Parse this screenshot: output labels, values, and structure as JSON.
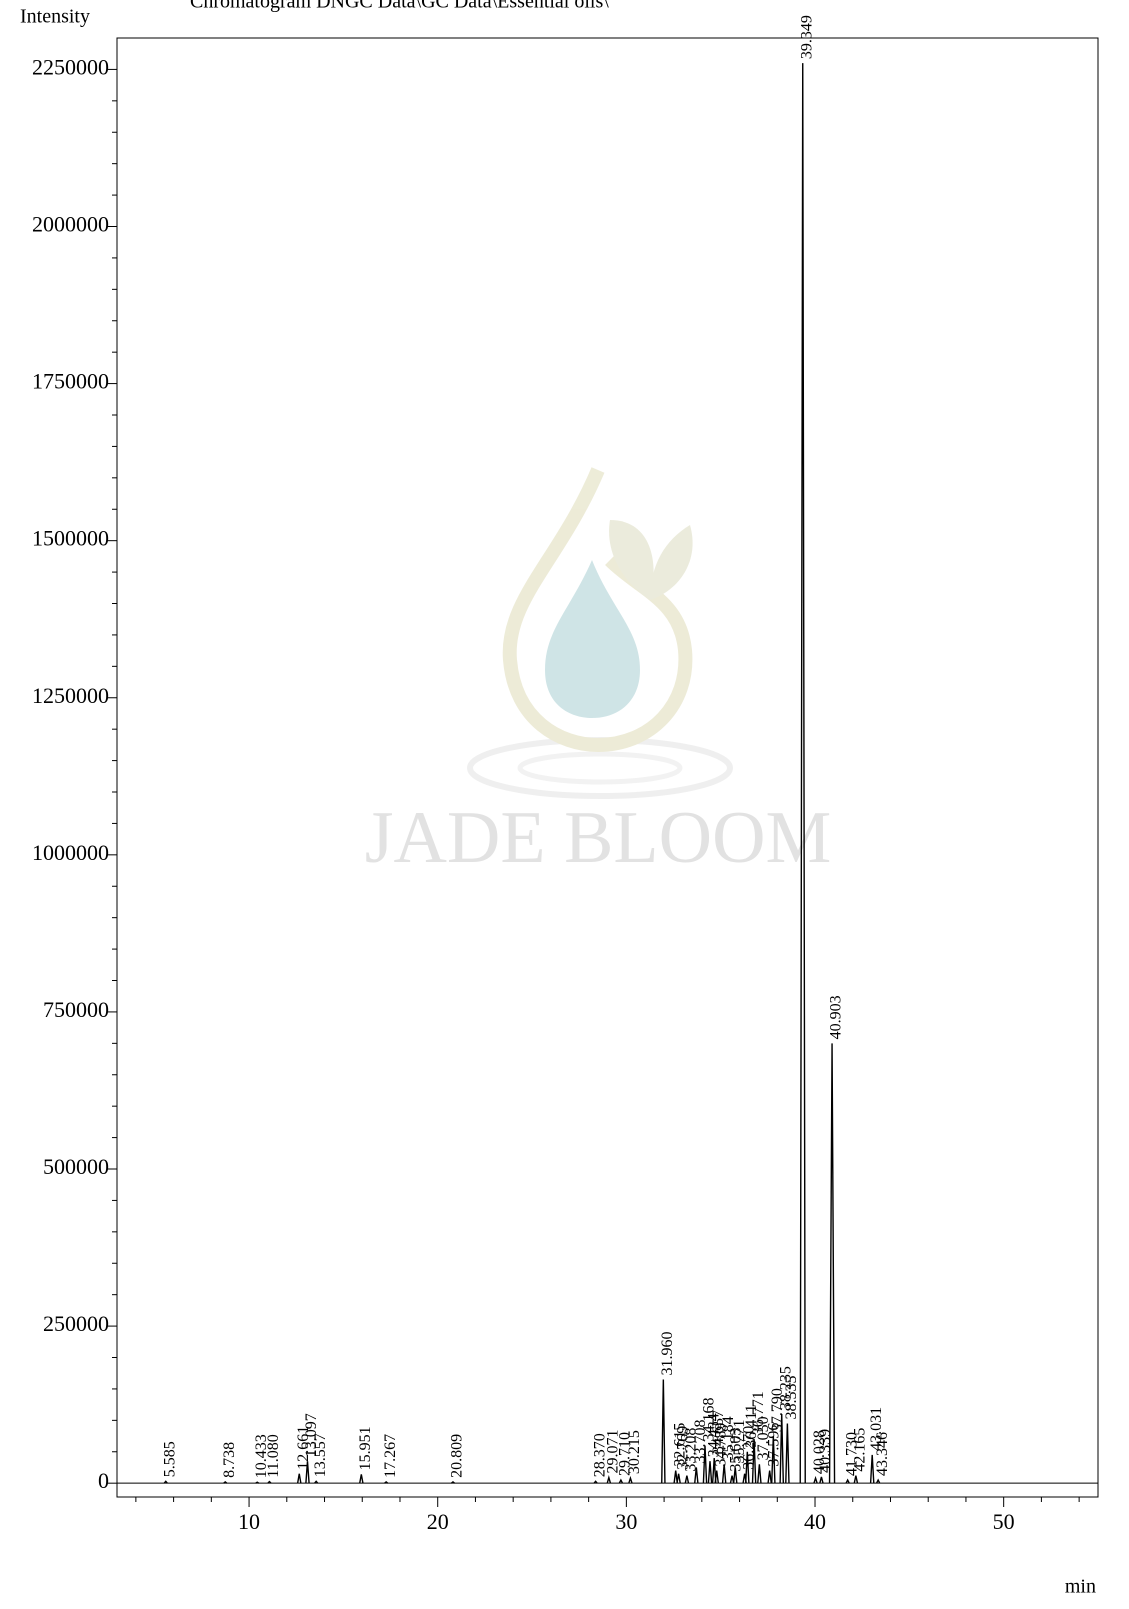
{
  "chart_data": {
    "type": "chromatogram",
    "title": "Chromatogram DNGC Data\\GC Data\\Essential oils\\",
    "y_label": "Intensity",
    "x_label": "min",
    "watermark": "JADE BLOOM",
    "color": "#000000",
    "xlim": [
      3,
      55
    ],
    "xticks": [
      10,
      20,
      30,
      40,
      50
    ],
    "xminorticks": [
      4,
      6,
      8,
      12,
      14,
      16,
      18,
      22,
      24,
      26,
      28,
      32,
      34,
      36,
      38,
      42,
      44,
      46,
      48,
      52,
      54
    ],
    "ylim": [
      -22000,
      2300000
    ],
    "yticks": [
      0,
      250000,
      500000,
      750000,
      1000000,
      1250000,
      1500000,
      1750000,
      2000000,
      2250000
    ],
    "yminorticks": [
      50000,
      100000,
      150000,
      200000,
      300000,
      350000,
      400000,
      450000,
      550000,
      600000,
      650000,
      700000,
      800000,
      850000,
      900000,
      950000,
      1050000,
      1100000,
      1150000,
      1200000,
      1300000,
      1350000,
      1400000,
      1450000,
      1550000,
      1600000,
      1650000,
      1700000,
      1800000,
      1850000,
      1900000,
      1950000,
      2050000,
      2100000,
      2150000,
      2200000
    ],
    "x": [
      5.585,
      8.738,
      10.433,
      11.08,
      12.661,
      13.097,
      13.557,
      15.951,
      17.267,
      20.809,
      28.37,
      29.071,
      29.71,
      30.215,
      31.96,
      32.615,
      32.769,
      33.208,
      33.708,
      34.168,
      34.434,
      34.657,
      34.789,
      35.184,
      35.603,
      35.771,
      36.27,
      36.411,
      36.771,
      37.05,
      37.596,
      37.79,
      38.235,
      38.535,
      39.349,
      40.028,
      40.339,
      40.903,
      41.73,
      42.165,
      43.031,
      43.346
    ],
    "x_labels": [
      "5.585",
      "8.738",
      "10.433",
      "11.080",
      "12.661",
      "13.097",
      "13.557",
      "15.951",
      "17.267",
      "20.809",
      "28.370",
      "29.071",
      "29.710",
      "30.215",
      "31.960",
      "32.615",
      "32.769",
      "33.208",
      "33.708",
      "34.168",
      "34.434",
      "34.657",
      "34.789",
      "35.184",
      "35.603",
      "35.771",
      "36.270",
      "36.411",
      "36.771",
      "37.050",
      "37.596",
      "37.790",
      "38.235",
      "38.535",
      "39.349",
      "40.028",
      "40.339",
      "40.903",
      "41.730",
      "42.165",
      "43.031",
      "43.346"
    ],
    "values": [
      3000,
      2000,
      1500,
      2500,
      15000,
      35000,
      3000,
      14000,
      2000,
      2000,
      3000,
      9000,
      5000,
      8000,
      165000,
      20000,
      15000,
      12000,
      25000,
      60000,
      35000,
      40000,
      20000,
      30000,
      12000,
      25000,
      15000,
      50000,
      70000,
      30000,
      20000,
      75000,
      110000,
      95000,
      2260000,
      8000,
      10000,
      700000,
      5000,
      12000,
      45000,
      5000
    ]
  }
}
